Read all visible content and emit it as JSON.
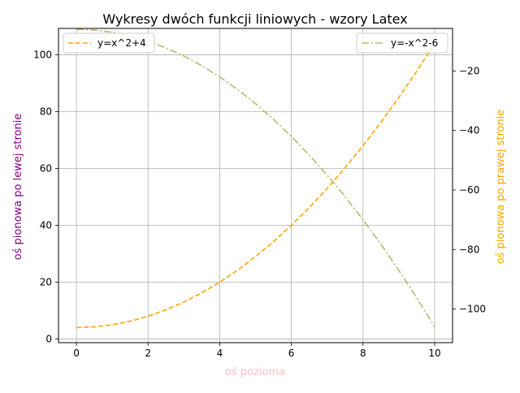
{
  "chart_data": {
    "type": "line",
    "title": "Wykresy dwóch funkcji liniowych - wzory Latex",
    "xlabel": "oś pozioma",
    "ylabel_left": "oś pionowa po lewej stronie",
    "ylabel_right": "oś pionowa po prawej stronie",
    "xlabel_color": "#ffc0cb",
    "ylabel_left_color": "#800080",
    "ylabel_right_color": "#ffa500",
    "xlim": [
      -0.5,
      10.5
    ],
    "ylim_left": [
      -1.3,
      109.3
    ],
    "ylim_right": [
      -111.3,
      -5.7
    ],
    "x_ticks": [
      0,
      2,
      4,
      6,
      8,
      10
    ],
    "y_ticks_left": [
      0,
      20,
      40,
      60,
      80,
      100
    ],
    "y_ticks_right": [
      -100,
      -80,
      -60,
      -40,
      -20
    ],
    "grid": true,
    "x": [
      0,
      0.5,
      1,
      1.5,
      2,
      2.5,
      3,
      3.5,
      4,
      4.5,
      5,
      5.5,
      6,
      6.5,
      7,
      7.5,
      8,
      8.5,
      9,
      9.5,
      10
    ],
    "series": [
      {
        "name": "y=x^2+4",
        "axis": "left",
        "color": "#ffa500",
        "linestyle": "dashed",
        "legend_position": "upper left",
        "values": [
          4,
          4.25,
          5,
          6.25,
          8,
          10.25,
          13,
          16.25,
          20,
          24.25,
          29,
          34.25,
          40,
          46.25,
          53,
          60.25,
          68,
          76.25,
          85,
          94.25,
          104
        ]
      },
      {
        "name": "y=-x^2-6",
        "axis": "right",
        "color": "#bdb76b",
        "linestyle": "dashdot",
        "legend_position": "upper right",
        "values": [
          -6,
          -6.25,
          -7,
          -8.25,
          -10,
          -12.25,
          -15,
          -18.25,
          -22,
          -26.25,
          -31,
          -36.25,
          -42,
          -48.25,
          -55,
          -62.25,
          -70,
          -78.25,
          -87,
          -96.25,
          -106
        ]
      }
    ]
  }
}
